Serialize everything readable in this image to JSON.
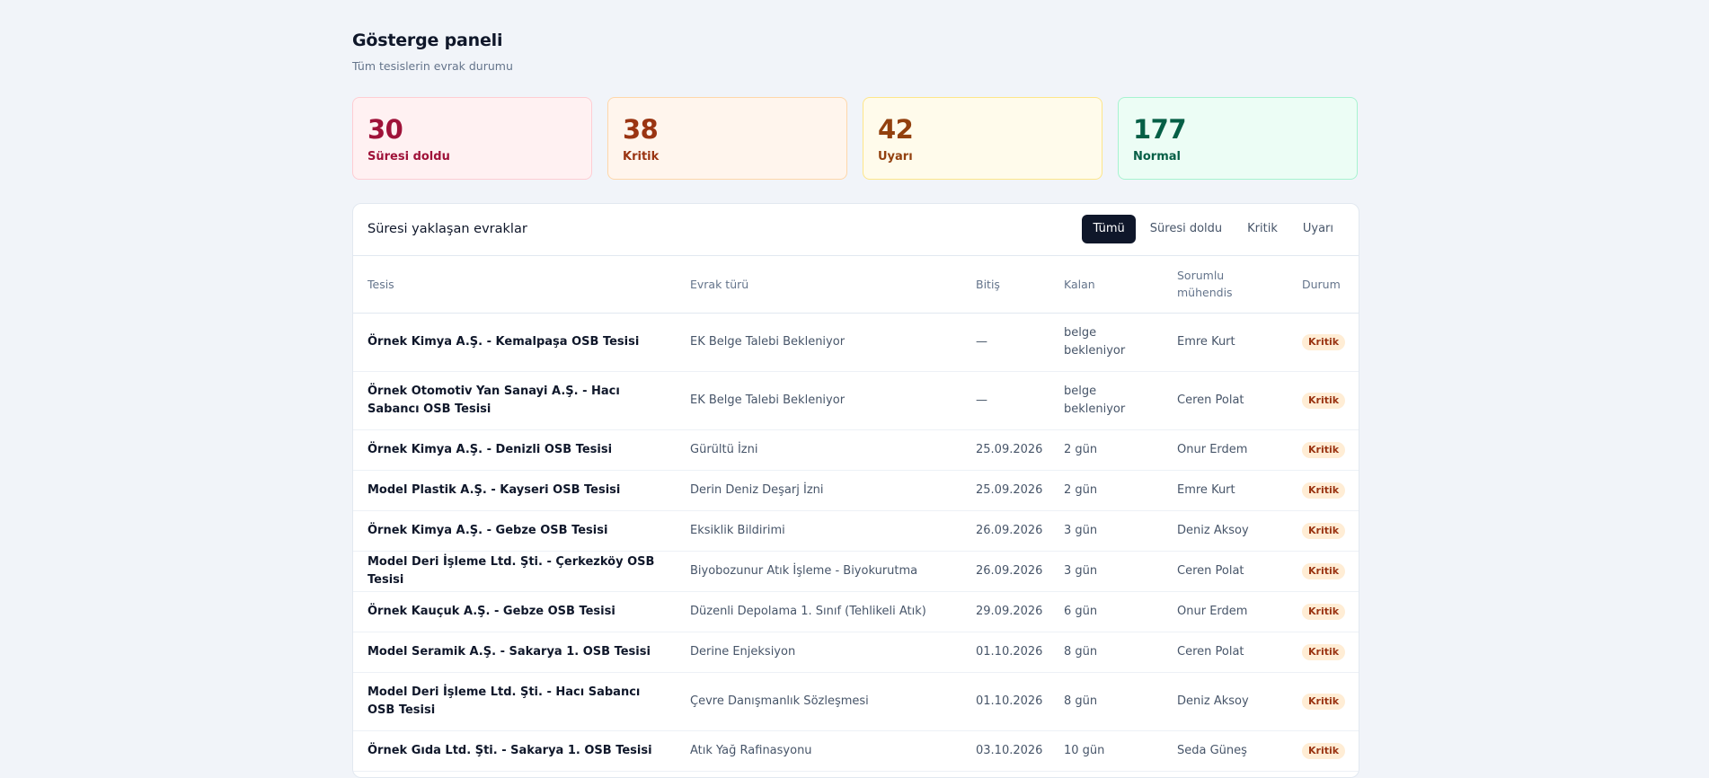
{
  "header": {
    "title": "Gösterge paneli",
    "subtitle": "Tüm tesislerin evrak durumu"
  },
  "stats": [
    {
      "value": "30",
      "label": "Süresi doldu"
    },
    {
      "value": "38",
      "label": "Kritik"
    },
    {
      "value": "42",
      "label": "Uyarı"
    },
    {
      "value": "177",
      "label": "Normal"
    }
  ],
  "panel": {
    "title": "Süresi yaklaşan evraklar",
    "filters": [
      "Tümü",
      "Süresi doldu",
      "Kritik",
      "Uyarı"
    ],
    "active_filter": "Tümü"
  },
  "table": {
    "columns": [
      "Tesis",
      "Evrak türü",
      "Bitiş",
      "Kalan",
      "Sorumlu mühendis",
      "Durum"
    ],
    "rows": [
      {
        "facility": "Örnek Kimya A.Ş. - Kemalpaşa OSB Tesisi",
        "doc": "EK Belge Talebi Bekleniyor",
        "end": "—",
        "left": "belge bekleniyor",
        "engineer": "Emre Kurt",
        "status": "Kritik"
      },
      {
        "facility": "Örnek Otomotiv Yan Sanayi A.Ş. - Hacı Sabancı OSB Tesisi",
        "doc": "EK Belge Talebi Bekleniyor",
        "end": "—",
        "left": "belge bekleniyor",
        "engineer": "Ceren Polat",
        "status": "Kritik"
      },
      {
        "facility": "Örnek Kimya A.Ş. - Denizli OSB Tesisi",
        "doc": "Gürültü İzni",
        "end": "25.09.2026",
        "left": "2 gün",
        "engineer": "Onur Erdem",
        "status": "Kritik"
      },
      {
        "facility": "Model Plastik A.Ş. - Kayseri OSB Tesisi",
        "doc": "Derin Deniz Deşarj İzni",
        "end": "25.09.2026",
        "left": "2 gün",
        "engineer": "Emre Kurt",
        "status": "Kritik"
      },
      {
        "facility": "Örnek Kimya A.Ş. - Gebze OSB Tesisi",
        "doc": "Eksiklik Bildirimi",
        "end": "26.09.2026",
        "left": "3 gün",
        "engineer": "Deniz Aksoy",
        "status": "Kritik"
      },
      {
        "facility": "Model Deri İşleme Ltd. Şti. - Çerkezköy OSB Tesisi",
        "doc": "Biyobozunur Atık İşleme - Biyokurutma",
        "end": "26.09.2026",
        "left": "3 gün",
        "engineer": "Ceren Polat",
        "status": "Kritik"
      },
      {
        "facility": "Örnek Kauçuk A.Ş. - Gebze OSB Tesisi",
        "doc": "Düzenli Depolama 1. Sınıf (Tehlikeli Atık)",
        "end": "29.09.2026",
        "left": "6 gün",
        "engineer": "Onur Erdem",
        "status": "Kritik"
      },
      {
        "facility": "Model Seramik A.Ş. - Sakarya 1. OSB Tesisi",
        "doc": "Derine Enjeksiyon",
        "end": "01.10.2026",
        "left": "8 gün",
        "engineer": "Ceren Polat",
        "status": "Kritik"
      },
      {
        "facility": "Model Deri İşleme Ltd. Şti. - Hacı Sabancı OSB Tesisi",
        "doc": "Çevre Danışmanlık Sözleşmesi",
        "end": "01.10.2026",
        "left": "8 gün",
        "engineer": "Deniz Aksoy",
        "status": "Kritik"
      },
      {
        "facility": "Örnek Gıda Ltd. Şti. - Sakarya 1. OSB Tesisi",
        "doc": "Atık Yağ Rafinasyonu",
        "end": "03.10.2026",
        "left": "10 gün",
        "engineer": "Seda Güneş",
        "status": "Kritik"
      }
    ]
  }
}
